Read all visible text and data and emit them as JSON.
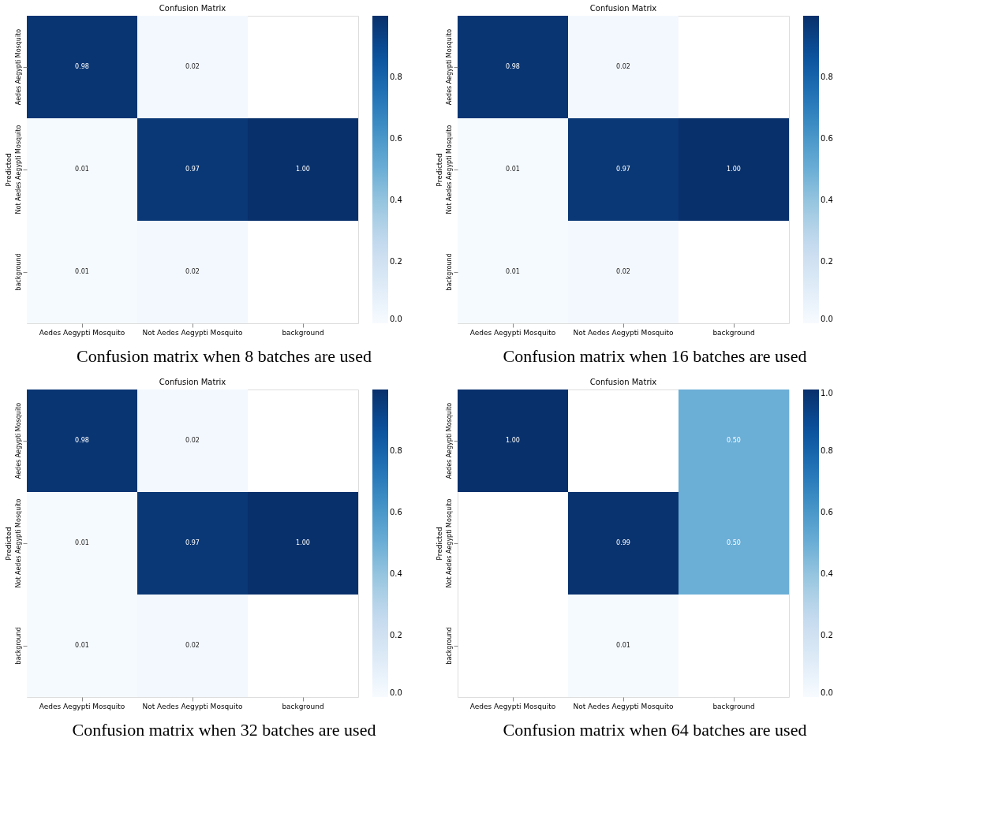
{
  "chart_data": [
    {
      "type": "heatmap",
      "title": "Confusion Matrix",
      "ylabel": "Predicted",
      "categories": [
        "Aedes Aegypti Mosquito",
        "Not Aedes Aegypti Mosquito",
        "background"
      ],
      "y_categories": [
        "Aedes Aegypti Mosquito",
        "Not Aedes Aegypti Mosquito",
        "background"
      ],
      "cells": [
        [
          0.98,
          0.02,
          null
        ],
        [
          0.01,
          0.97,
          1.0
        ],
        [
          0.01,
          0.02,
          null
        ]
      ],
      "cell_labels": [
        [
          "0.98",
          "0.02",
          null
        ],
        [
          "0.01",
          "0.97",
          "1.00"
        ],
        [
          "0.01",
          "0.02",
          null
        ]
      ],
      "clim": [
        0,
        1
      ],
      "cticks": [
        {
          "value": 0,
          "label": "0.0"
        },
        0.2,
        0.4,
        0.6,
        0.8
      ],
      "annotations": [
        "Confusion matrix when 8 batches are used"
      ]
    },
    {
      "type": "heatmap",
      "title": "Confusion Matrix",
      "ylabel": "Predicted",
      "categories": [
        "Aedes Aegypti Mosquito",
        "Not Aedes Aegypti Mosquito",
        "background"
      ],
      "y_categories": [
        "Aedes Aegypti Mosquito",
        "Not Aedes Aegypti Mosquito",
        "background"
      ],
      "cells": [
        [
          0.98,
          0.02,
          null
        ],
        [
          0.01,
          0.97,
          1.0
        ],
        [
          0.01,
          0.02,
          null
        ]
      ],
      "cell_labels": [
        [
          "0.98",
          "0.02",
          null
        ],
        [
          "0.01",
          "0.97",
          "1.00"
        ],
        [
          "0.01",
          "0.02",
          null
        ]
      ],
      "clim": [
        0,
        1
      ],
      "cticks": [
        {
          "value": 0,
          "label": "0.0"
        },
        0.2,
        0.4,
        0.6,
        0.8
      ],
      "annotations": [
        "Confusion matrix when 16 batches are used"
      ]
    },
    {
      "type": "heatmap",
      "title": "Confusion Matrix",
      "ylabel": "Predicted",
      "categories": [
        "Aedes Aegypti Mosquito",
        "Not Aedes Aegypti Mosquito",
        "background"
      ],
      "y_categories": [
        "Aedes Aegypti Mosquito",
        "Not Aedes Aegypti Mosquito",
        "background"
      ],
      "cells": [
        [
          0.98,
          0.02,
          null
        ],
        [
          0.01,
          0.97,
          1.0
        ],
        [
          0.01,
          0.02,
          null
        ]
      ],
      "cell_labels": [
        [
          "0.98",
          "0.02",
          null
        ],
        [
          "0.01",
          "0.97",
          "1.00"
        ],
        [
          "0.01",
          "0.02",
          null
        ]
      ],
      "clim": [
        0,
        1
      ],
      "cticks": [
        {
          "value": 0,
          "label": "0.0"
        },
        0.2,
        0.4,
        0.6,
        0.8
      ],
      "annotations": [
        "Confusion matrix when 32 batches are used"
      ]
    },
    {
      "type": "heatmap",
      "title": "Confusion Matrix",
      "ylabel": "Predicted",
      "categories": [
        "Aedes Aegypti Mosquito",
        "Not Aedes Aegypti Mosquito",
        "background"
      ],
      "y_categories": [
        "Aedes Aegypti Mosquito",
        "Not Aedes Aegypti Mosquito",
        "background"
      ],
      "cells": [
        [
          1.0,
          null,
          0.5
        ],
        [
          null,
          0.99,
          0.5
        ],
        [
          null,
          0.01,
          null
        ]
      ],
      "cell_labels": [
        [
          "1.00",
          null,
          "0.50"
        ],
        [
          null,
          "0.99",
          "0.50"
        ],
        [
          null,
          "0.01",
          null
        ]
      ],
      "clim": [
        0,
        1
      ],
      "cticks": [
        {
          "value": 0,
          "label": "0.0"
        },
        0.2,
        0.4,
        0.6,
        0.8,
        {
          "value": 1,
          "label": "1.0"
        }
      ],
      "annotations": [
        "Confusion matrix when 64 batches are used"
      ]
    }
  ]
}
